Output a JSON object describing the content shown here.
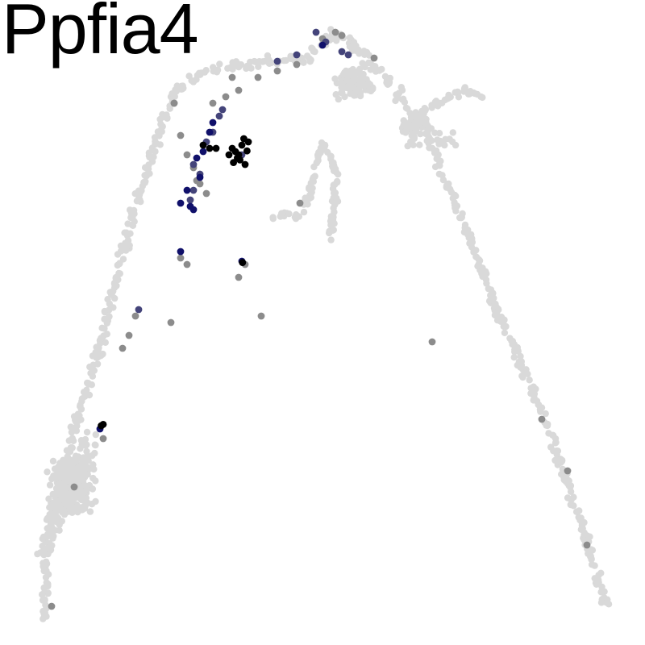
{
  "chart_data": {
    "type": "scatter",
    "title": "Ppfia4",
    "xlabel": "",
    "ylabel": "",
    "grid": false,
    "axes_visible": false,
    "legend": "none",
    "xlim": [
      0,
      100
    ],
    "ylim": [
      0,
      100
    ],
    "colors": {
      "background": "#d9d9d9",
      "low": "#8c8c8c",
      "mid": "#44447a",
      "high": "#10106a",
      "max": "#000000"
    },
    "paths": [
      {
        "name": "left-arm",
        "width": 2.0,
        "points": [
          [
            7,
            4
          ],
          [
            7,
            12
          ],
          [
            8,
            20
          ],
          [
            10,
            28
          ],
          [
            12,
            35
          ],
          [
            14,
            41
          ],
          [
            16,
            48
          ],
          [
            18,
            56
          ],
          [
            20,
            64
          ],
          [
            22,
            72
          ],
          [
            25,
            80
          ],
          [
            27,
            86
          ],
          [
            32,
            89
          ],
          [
            37,
            90
          ],
          [
            42,
            90.5
          ],
          [
            48,
            91
          ]
        ]
      },
      {
        "name": "left-base-spread",
        "width": 3.5,
        "points": [
          [
            6,
            14
          ],
          [
            9,
            20
          ],
          [
            12,
            27
          ],
          [
            14,
            32
          ]
        ]
      },
      {
        "name": "inner-stem",
        "width": 1.5,
        "points": [
          [
            50,
            78
          ],
          [
            49,
            74
          ],
          [
            48,
            70
          ],
          [
            46,
            66
          ],
          [
            44,
            67
          ],
          [
            42,
            66
          ]
        ]
      },
      {
        "name": "inner-branch-right",
        "width": 1.2,
        "points": [
          [
            50,
            78
          ],
          [
            52,
            74
          ],
          [
            52,
            68
          ],
          [
            51,
            63
          ]
        ]
      },
      {
        "name": "right-loop",
        "width": 3.0,
        "points": [
          [
            48,
            92
          ],
          [
            52,
            95
          ],
          [
            56,
            92
          ],
          [
            60,
            88
          ],
          [
            62,
            85
          ],
          [
            66,
            80
          ],
          [
            70,
            78
          ]
        ]
      },
      {
        "name": "right-spur",
        "width": 1.5,
        "points": [
          [
            64,
            82
          ],
          [
            68,
            84
          ],
          [
            72,
            86
          ],
          [
            75,
            85
          ]
        ]
      },
      {
        "name": "right-arm",
        "width": 1.8,
        "points": [
          [
            66,
            79
          ],
          [
            70,
            70
          ],
          [
            74,
            60
          ],
          [
            77,
            52
          ],
          [
            81,
            43
          ],
          [
            85,
            34
          ],
          [
            88,
            25
          ],
          [
            91,
            16
          ],
          [
            93,
            9
          ],
          [
            94,
            6
          ]
        ]
      }
    ],
    "dense_regions": [
      {
        "x": 11,
        "y": 25,
        "rx": 4.5,
        "ry": 7,
        "n": 260
      },
      {
        "x": 55,
        "y": 87,
        "rx": 4,
        "ry": 3,
        "n": 110
      },
      {
        "x": 64,
        "y": 80,
        "rx": 2.5,
        "ry": 3.5,
        "n": 40
      }
    ],
    "expressing_points": [
      {
        "x": 28,
        "y": 79,
        "level": "low"
      },
      {
        "x": 29,
        "y": 76,
        "level": "low"
      },
      {
        "x": 30,
        "y": 74,
        "level": "low"
      },
      {
        "x": 30.5,
        "y": 72,
        "level": "low"
      },
      {
        "x": 31,
        "y": 71.5,
        "level": "low"
      },
      {
        "x": 32,
        "y": 70,
        "level": "low"
      },
      {
        "x": 33,
        "y": 84,
        "level": "low"
      },
      {
        "x": 35,
        "y": 85,
        "level": "low"
      },
      {
        "x": 37,
        "y": 86,
        "level": "low"
      },
      {
        "x": 40,
        "y": 88,
        "level": "low"
      },
      {
        "x": 43,
        "y": 89,
        "level": "low"
      },
      {
        "x": 46,
        "y": 90,
        "level": "low"
      },
      {
        "x": 27,
        "y": 84,
        "level": "low"
      },
      {
        "x": 36,
        "y": 88,
        "level": "low"
      },
      {
        "x": 50,
        "y": 94,
        "level": "low"
      },
      {
        "x": 52,
        "y": 95,
        "level": "low"
      },
      {
        "x": 53,
        "y": 94.5,
        "level": "low"
      },
      {
        "x": 58,
        "y": 91,
        "level": "low"
      },
      {
        "x": 29,
        "y": 59,
        "level": "low"
      },
      {
        "x": 28,
        "y": 60,
        "level": "low"
      },
      {
        "x": 37,
        "y": 57,
        "level": "low"
      },
      {
        "x": 38,
        "y": 59,
        "level": "low"
      },
      {
        "x": 21,
        "y": 51,
        "level": "low"
      },
      {
        "x": 20,
        "y": 48,
        "level": "low"
      },
      {
        "x": 19,
        "y": 46,
        "level": "low"
      },
      {
        "x": 16,
        "y": 32,
        "level": "low"
      },
      {
        "x": 11.5,
        "y": 24.5,
        "level": "low"
      },
      {
        "x": 8,
        "y": 6,
        "level": "low"
      },
      {
        "x": 46.5,
        "y": 68.5,
        "level": "low"
      },
      {
        "x": 27,
        "y": 84,
        "level": "low"
      },
      {
        "x": 67,
        "y": 47,
        "level": "low"
      },
      {
        "x": 84,
        "y": 35,
        "level": "low"
      },
      {
        "x": 88,
        "y": 27,
        "level": "low"
      },
      {
        "x": 91,
        "y": 15.5,
        "level": "low"
      },
      {
        "x": 40.5,
        "y": 51,
        "level": "low"
      },
      {
        "x": 26.5,
        "y": 50,
        "level": "low"
      },
      {
        "x": 33,
        "y": 79.5,
        "level": "mid"
      },
      {
        "x": 34,
        "y": 82,
        "level": "mid"
      },
      {
        "x": 34.5,
        "y": 83,
        "level": "mid"
      },
      {
        "x": 32,
        "y": 78,
        "level": "mid"
      },
      {
        "x": 30,
        "y": 74.5,
        "level": "mid"
      },
      {
        "x": 31,
        "y": 73,
        "level": "mid"
      },
      {
        "x": 29.5,
        "y": 69,
        "level": "mid"
      },
      {
        "x": 30,
        "y": 70.5,
        "level": "mid"
      },
      {
        "x": 46,
        "y": 91.5,
        "level": "mid"
      },
      {
        "x": 49,
        "y": 95,
        "level": "mid"
      },
      {
        "x": 50.5,
        "y": 93.5,
        "level": "mid"
      },
      {
        "x": 53,
        "y": 92,
        "level": "mid"
      },
      {
        "x": 21.5,
        "y": 52,
        "level": "mid"
      },
      {
        "x": 54,
        "y": 91.5,
        "level": "mid"
      },
      {
        "x": 43,
        "y": 90.5,
        "level": "mid"
      },
      {
        "x": 37.5,
        "y": 76,
        "level": "mid"
      },
      {
        "x": 33,
        "y": 81,
        "level": "high"
      },
      {
        "x": 32.5,
        "y": 79.5,
        "level": "high"
      },
      {
        "x": 31.5,
        "y": 76.5,
        "level": "high"
      },
      {
        "x": 30.5,
        "y": 75.5,
        "level": "high"
      },
      {
        "x": 31,
        "y": 72.5,
        "level": "high"
      },
      {
        "x": 29,
        "y": 70.5,
        "level": "high"
      },
      {
        "x": 29.5,
        "y": 68,
        "level": "high"
      },
      {
        "x": 28,
        "y": 68.5,
        "level": "high"
      },
      {
        "x": 30,
        "y": 67.5,
        "level": "high"
      },
      {
        "x": 50,
        "y": 93,
        "level": "high"
      },
      {
        "x": 37.5,
        "y": 59.5,
        "level": "high"
      },
      {
        "x": 28,
        "y": 61,
        "level": "high"
      },
      {
        "x": 15.5,
        "y": 33.5,
        "level": "high"
      },
      {
        "x": 31.5,
        "y": 77.5,
        "level": "max"
      },
      {
        "x": 32.5,
        "y": 77,
        "level": "max"
      },
      {
        "x": 33.5,
        "y": 77,
        "level": "max"
      },
      {
        "x": 36,
        "y": 77,
        "level": "max"
      },
      {
        "x": 36.5,
        "y": 76.5,
        "level": "max"
      },
      {
        "x": 37,
        "y": 76,
        "level": "max"
      },
      {
        "x": 37.2,
        "y": 75.2,
        "level": "max"
      },
      {
        "x": 36.8,
        "y": 75.5,
        "level": "max"
      },
      {
        "x": 37.5,
        "y": 77.5,
        "level": "max"
      },
      {
        "x": 38,
        "y": 74.5,
        "level": "max"
      },
      {
        "x": 38.3,
        "y": 76.6,
        "level": "max"
      },
      {
        "x": 36.2,
        "y": 74.8,
        "level": "max"
      },
      {
        "x": 35.5,
        "y": 76,
        "level": "max"
      },
      {
        "x": 38.5,
        "y": 78,
        "level": "max"
      },
      {
        "x": 37.8,
        "y": 78.5,
        "level": "max"
      },
      {
        "x": 15.7,
        "y": 34,
        "level": "max"
      },
      {
        "x": 16,
        "y": 34.2,
        "level": "max"
      },
      {
        "x": 37.6,
        "y": 59.3,
        "level": "max"
      }
    ]
  }
}
